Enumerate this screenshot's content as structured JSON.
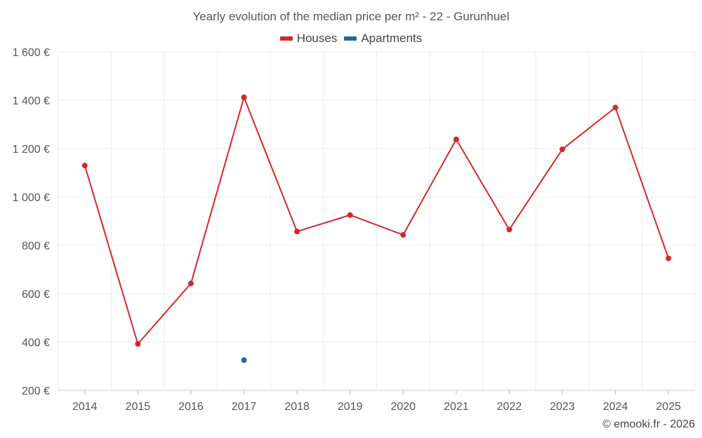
{
  "chart_data": {
    "type": "line",
    "title": "Yearly evolution of the median price per m² - 22 - Gurunhuel",
    "categories": [
      "2014",
      "2015",
      "2016",
      "2017",
      "2018",
      "2019",
      "2020",
      "2021",
      "2022",
      "2023",
      "2024",
      "2025"
    ],
    "series": [
      {
        "name": "Houses",
        "color": "#d62728",
        "values": [
          1130,
          392,
          642,
          1412,
          857,
          925,
          843,
          1238,
          865,
          1197,
          1370,
          746
        ]
      },
      {
        "name": "Apartments",
        "color": "#1f6aa5",
        "values": [
          null,
          null,
          null,
          325,
          null,
          null,
          null,
          null,
          null,
          null,
          null,
          null
        ]
      }
    ],
    "ylim": [
      200,
      1600
    ],
    "yticks": [
      200,
      400,
      600,
      800,
      1000,
      1200,
      1400,
      1600
    ],
    "ytick_labels": [
      "200 €",
      "400 €",
      "600 €",
      "800 €",
      "1 000 €",
      "1 200 €",
      "1 400 €",
      "1 600 €"
    ],
    "xlabel": "",
    "ylabel": "",
    "grid": true,
    "legend_position": "top-center"
  },
  "credit": "© emooki.fr - 2026"
}
